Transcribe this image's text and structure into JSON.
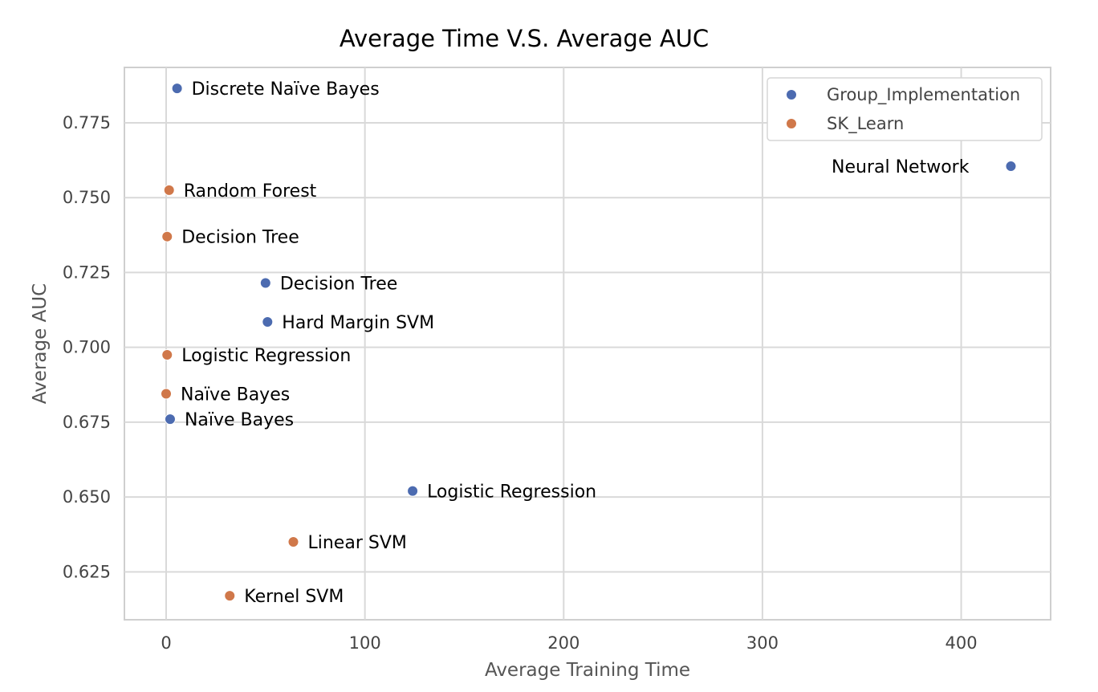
{
  "chart_data": {
    "type": "scatter",
    "title": "Average Time V.S. Average AUC",
    "xlabel": "Average Training Time",
    "ylabel": "Average AUC",
    "xlim": [
      -21,
      445
    ],
    "ylim": [
      0.609,
      0.7935
    ],
    "xticks": [
      0,
      100,
      200,
      300,
      400
    ],
    "xtick_labels": [
      "0",
      "100",
      "200",
      "300",
      "400"
    ],
    "yticks": [
      0.625,
      0.65,
      0.675,
      0.7,
      0.725,
      0.75,
      0.775
    ],
    "ytick_labels": [
      "0.625",
      "0.650",
      "0.675",
      "0.700",
      "0.725",
      "0.750",
      "0.775"
    ],
    "grid": true,
    "legend_position": "top-right",
    "series": [
      {
        "name": "Group_Implementation",
        "color": "#4c6bb0",
        "points": [
          {
            "x": 5.5,
            "y": 0.7865,
            "label": "Discrete Naïve Bayes"
          },
          {
            "x": 425,
            "y": 0.7605,
            "label": "Neural Network"
          },
          {
            "x": 50,
            "y": 0.7215,
            "label": "Decision Tree"
          },
          {
            "x": 51,
            "y": 0.7085,
            "label": "Hard Margin SVM"
          },
          {
            "x": 2,
            "y": 0.676,
            "label": "Naïve Bayes"
          },
          {
            "x": 124,
            "y": 0.652,
            "label": "Logistic Regression"
          }
        ]
      },
      {
        "name": "SK_Learn",
        "color": "#d0784a",
        "points": [
          {
            "x": 1.5,
            "y": 0.7525,
            "label": "Random Forest"
          },
          {
            "x": 0.5,
            "y": 0.737,
            "label": "Decision Tree"
          },
          {
            "x": 0.5,
            "y": 0.6975,
            "label": "Logistic Regression"
          },
          {
            "x": 0,
            "y": 0.6845,
            "label": "Naïve Bayes"
          },
          {
            "x": 64,
            "y": 0.635,
            "label": "Linear SVM"
          },
          {
            "x": 32,
            "y": 0.617,
            "label": "Kernel SVM"
          }
        ]
      }
    ]
  }
}
